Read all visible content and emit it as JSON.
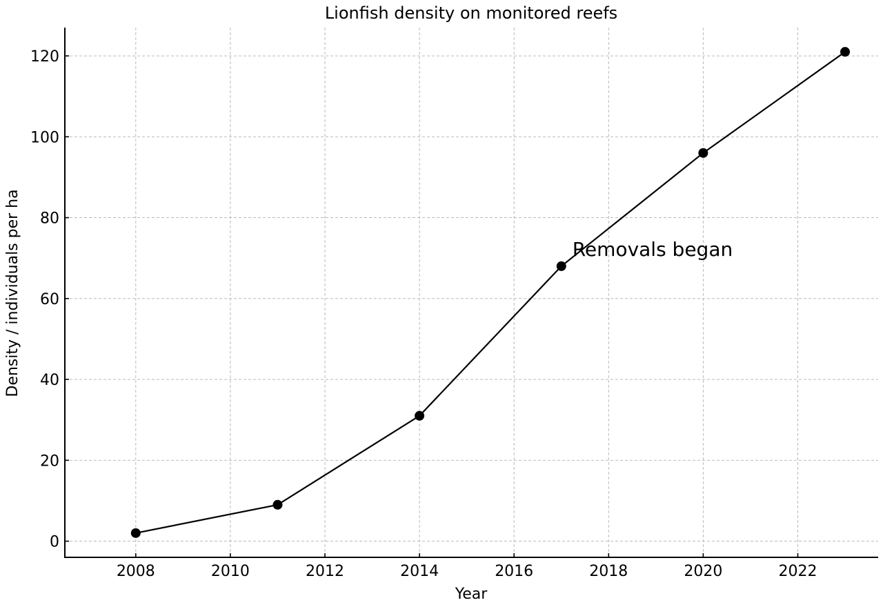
{
  "chart_data": {
    "type": "line",
    "title": "Lionfish density on monitored reefs",
    "xlabel": "Year",
    "ylabel": "Density / individuals per ha",
    "x_ticks": [
      2008,
      2010,
      2012,
      2014,
      2016,
      2018,
      2020,
      2022
    ],
    "y_ticks": [
      0,
      20,
      40,
      60,
      80,
      100,
      120
    ],
    "xlim": [
      2006.5,
      2023.7
    ],
    "ylim": [
      -4,
      127
    ],
    "grid": true,
    "series": [
      {
        "color": "#000000",
        "marker": "circle",
        "points": [
          {
            "x": 2008,
            "y": 2
          },
          {
            "x": 2011,
            "y": 9
          },
          {
            "x": 2014,
            "y": 31
          },
          {
            "x": 2017,
            "y": 68
          },
          {
            "x": 2020,
            "y": 96
          },
          {
            "x": 2023,
            "y": 121
          }
        ]
      }
    ],
    "annotations": [
      {
        "text": "Removals began",
        "x": 2017,
        "y": 68
      }
    ]
  }
}
